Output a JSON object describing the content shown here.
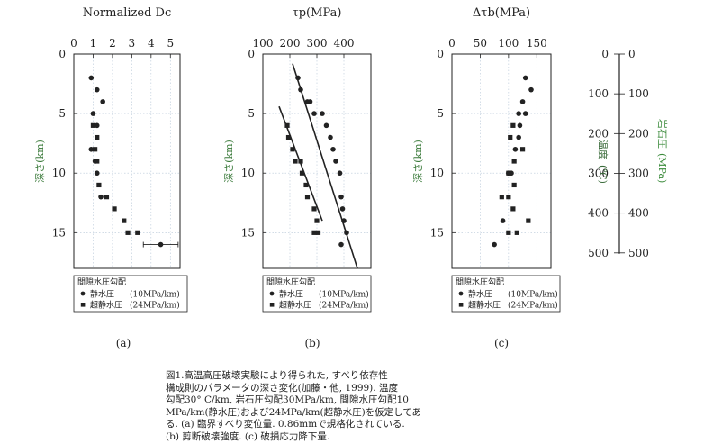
{
  "chart_data": [
    {
      "type": "scatter",
      "panel_label": "(a)",
      "title": "Normalized Dc",
      "ylabel": "深さ(km)",
      "xlim": [
        0,
        5.5
      ],
      "ylim": [
        0,
        18
      ],
      "xticks": [
        0,
        1,
        2,
        3,
        4,
        5
      ],
      "yticks": [
        0,
        5,
        10,
        15
      ],
      "grid": true,
      "series": [
        {
          "name": "静水圧 (10MPa/km)",
          "marker": "circle",
          "x": [
            0.9,
            1.2,
            1.5,
            1.0,
            1.2,
            0.9,
            1.1,
            1.2,
            1.4,
            4.5
          ],
          "y": [
            2,
            3,
            4,
            5,
            6,
            8,
            9,
            10,
            12,
            16
          ],
          "xerr_index": 9,
          "xerr": 0.9
        },
        {
          "name": "超静水圧 (24MPa/km)",
          "marker": "square",
          "x": [
            1.0,
            1.2,
            1.1,
            1.2,
            1.3,
            1.7,
            2.1,
            2.6,
            2.8,
            3.3
          ],
          "y": [
            6,
            7,
            8,
            9,
            11,
            12,
            13,
            14,
            15,
            15
          ]
        }
      ],
      "legend": {
        "title": "間隙水圧勾配",
        "entries": [
          "静水圧",
          "超静水圧"
        ],
        "units": [
          "(10MPa/km)",
          "(24MPa/km)"
        ]
      }
    },
    {
      "type": "scatter",
      "panel_label": "(b)",
      "title": "τp(MPa)",
      "ylabel": "深さ(km)",
      "xlim": [
        100,
        500
      ],
      "ylim": [
        0,
        18
      ],
      "xticks": [
        100,
        200,
        300,
        400
      ],
      "yticks": [
        0,
        5,
        10,
        15
      ],
      "grid": true,
      "series": [
        {
          "name": "静水圧 (10MPa/km)",
          "marker": "circle",
          "x": [
            230,
            240,
            265,
            275,
            290,
            320,
            335,
            350,
            360,
            370,
            385,
            390,
            395,
            400,
            410,
            390
          ],
          "y": [
            2,
            3,
            4,
            4,
            5,
            5,
            6,
            7,
            8,
            9,
            10,
            12,
            13,
            14,
            15,
            16
          ]
        },
        {
          "name": "超静水圧 (24MPa/km)",
          "marker": "square",
          "x": [
            190,
            195,
            210,
            220,
            240,
            245,
            260,
            265,
            290,
            300,
            305,
            290
          ],
          "y": [
            6,
            7,
            8,
            9,
            9,
            10,
            11,
            12,
            13,
            14,
            15,
            15
          ]
        }
      ],
      "fit_lines": [
        {
          "x": [
            210,
            450
          ],
          "y": [
            0.8,
            18
          ]
        },
        {
          "x": [
            160,
            320
          ],
          "y": [
            4.4,
            14
          ]
        }
      ],
      "legend": {
        "title": "間隙水圧勾配",
        "entries": [
          "静水圧",
          "超静水圧"
        ],
        "units": [
          "(10MPa/km)",
          "(24MPa/km)"
        ]
      }
    },
    {
      "type": "scatter",
      "panel_label": "(c)",
      "title": "Δτb(MPa)",
      "ylabel": "深さ(km)",
      "right_axis_labels": [
        "温度",
        "(℃)",
        "岩石圧",
        "(MPa)"
      ],
      "xlim": [
        0,
        175
      ],
      "ylim": [
        0,
        18
      ],
      "xticks": [
        0,
        50,
        100,
        150
      ],
      "yticks": [
        0,
        5,
        10,
        15
      ],
      "right_yticks": [
        0,
        100,
        200,
        300,
        400,
        500
      ],
      "grid": true,
      "series": [
        {
          "name": "静水圧 (10MPa/km)",
          "marker": "circle",
          "x": [
            130,
            140,
            125,
            118,
            130,
            120,
            118,
            112,
            105,
            100,
            90,
            75
          ],
          "y": [
            2,
            3,
            4,
            5,
            5,
            6,
            7,
            8,
            10,
            10,
            14,
            16
          ]
        },
        {
          "name": "超静水圧 (24MPa/km)",
          "marker": "square",
          "x": [
            108,
            103,
            125,
            110,
            100,
            110,
            88,
            100,
            108,
            100,
            135,
            115
          ],
          "y": [
            6,
            7,
            8,
            9,
            10,
            11,
            12,
            12,
            13,
            15,
            14,
            15
          ]
        }
      ],
      "legend": {
        "title": "間隙水圧勾配",
        "entries": [
          "静水圧",
          "超静水圧"
        ],
        "units": [
          "(10MPa/km)",
          "(24MPa/km)"
        ]
      }
    }
  ],
  "caption": "図1.高温高圧破壊実験により得られた, すべり依存性\n構成則のパラメータの深さ変化(加藤・他, 1999). 温度\n勾配30° C/km, 岩石圧勾配30MPa/km, 間隙水圧勾配10\nMPa/km(静水圧)および24MPa/km(超静水圧)を仮定してあ\nる. (a) 臨界すべり変位量. 0.86mmで規格化されている.\n(b) 剪断破壊強度. (c) 破損応力降下量.",
  "colors": {
    "ink": "#222222",
    "grid": "#b8c8d8",
    "ylabel": "#3a7a3a",
    "temp": "#3a6b3a",
    "rock": "#3a8a3a"
  }
}
